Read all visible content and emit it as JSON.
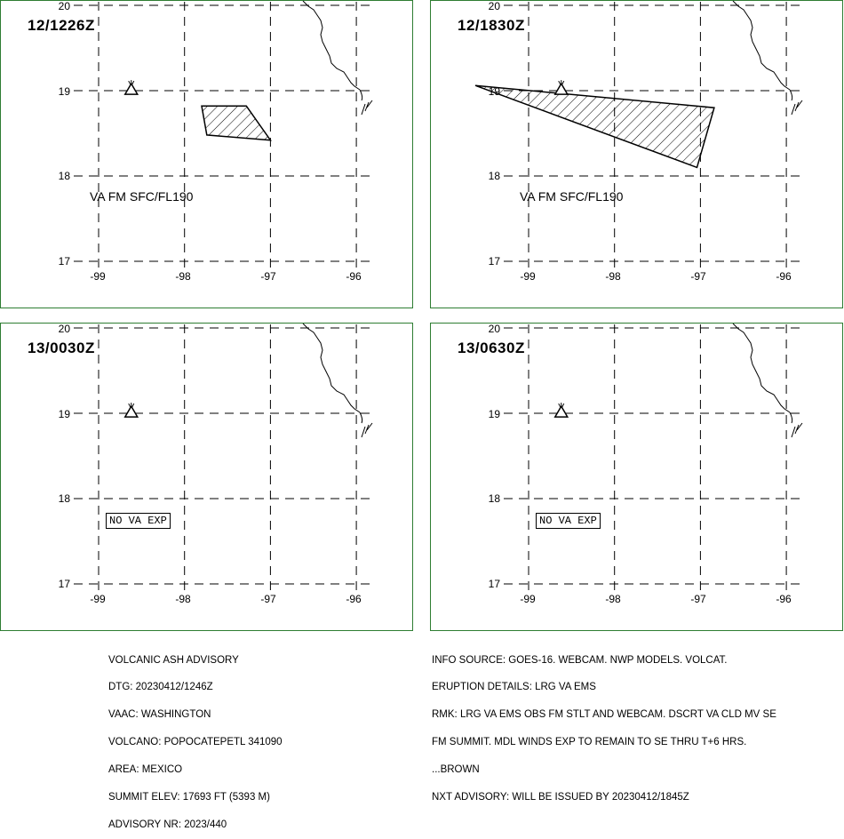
{
  "panels": [
    {
      "time": "12/1226Z",
      "va_label": "VA FM SFC/FL190",
      "no_va": "",
      "ash_polygon": [
        [
          -97.8,
          18.82
        ],
        [
          -97.28,
          18.82
        ],
        [
          -97.0,
          18.42
        ],
        [
          -97.74,
          18.48
        ]
      ]
    },
    {
      "time": "12/1830Z",
      "va_label": "VA FM SFC/FL190",
      "no_va": "",
      "ash_polygon": [
        [
          -99.62,
          19.06
        ],
        [
          -96.84,
          18.8
        ],
        [
          -97.04,
          18.1
        ]
      ]
    },
    {
      "time": "13/0030Z",
      "va_label": "",
      "no_va": "NO VA EXP",
      "ash_polygon": []
    },
    {
      "time": "13/0630Z",
      "va_label": "",
      "no_va": "NO VA EXP",
      "ash_polygon": []
    }
  ],
  "axes": {
    "lat_ticks": [
      "20",
      "19",
      "18",
      "17"
    ],
    "lon_ticks": [
      "-99",
      "-98",
      "-97",
      "-96"
    ]
  },
  "volcano_symbol": "volcano-triangle-icon",
  "advisory_left": [
    "VOLCANIC ASH ADVISORY",
    "DTG: 20230412/1246Z",
    "VAAC: WASHINGTON",
    "VOLCANO: POPOCATEPETL 341090",
    "AREA: MEXICO",
    "SUMMIT ELEV: 17693 FT (5393 M)",
    "ADVISORY NR: 2023/440"
  ],
  "advisory_right": [
    "INFO SOURCE: GOES-16. WEBCAM. NWP MODELS. VOLCAT.",
    "ERUPTION DETAILS: LRG VA EMS",
    "RMK: LRG VA EMS OBS FM STLT AND WEBCAM. DSCRT VA CLD MV SE",
    "FM SUMMIT. MDL WINDS EXP TO REMAIN TO SE THRU T+6 HRS.",
    "...BROWN",
    "NXT ADVISORY: WILL BE ISSUED BY 20230412/1845Z"
  ],
  "colors": {
    "panel_border": "#2e7d32",
    "grid": "#000000",
    "hatch": "#000000"
  }
}
